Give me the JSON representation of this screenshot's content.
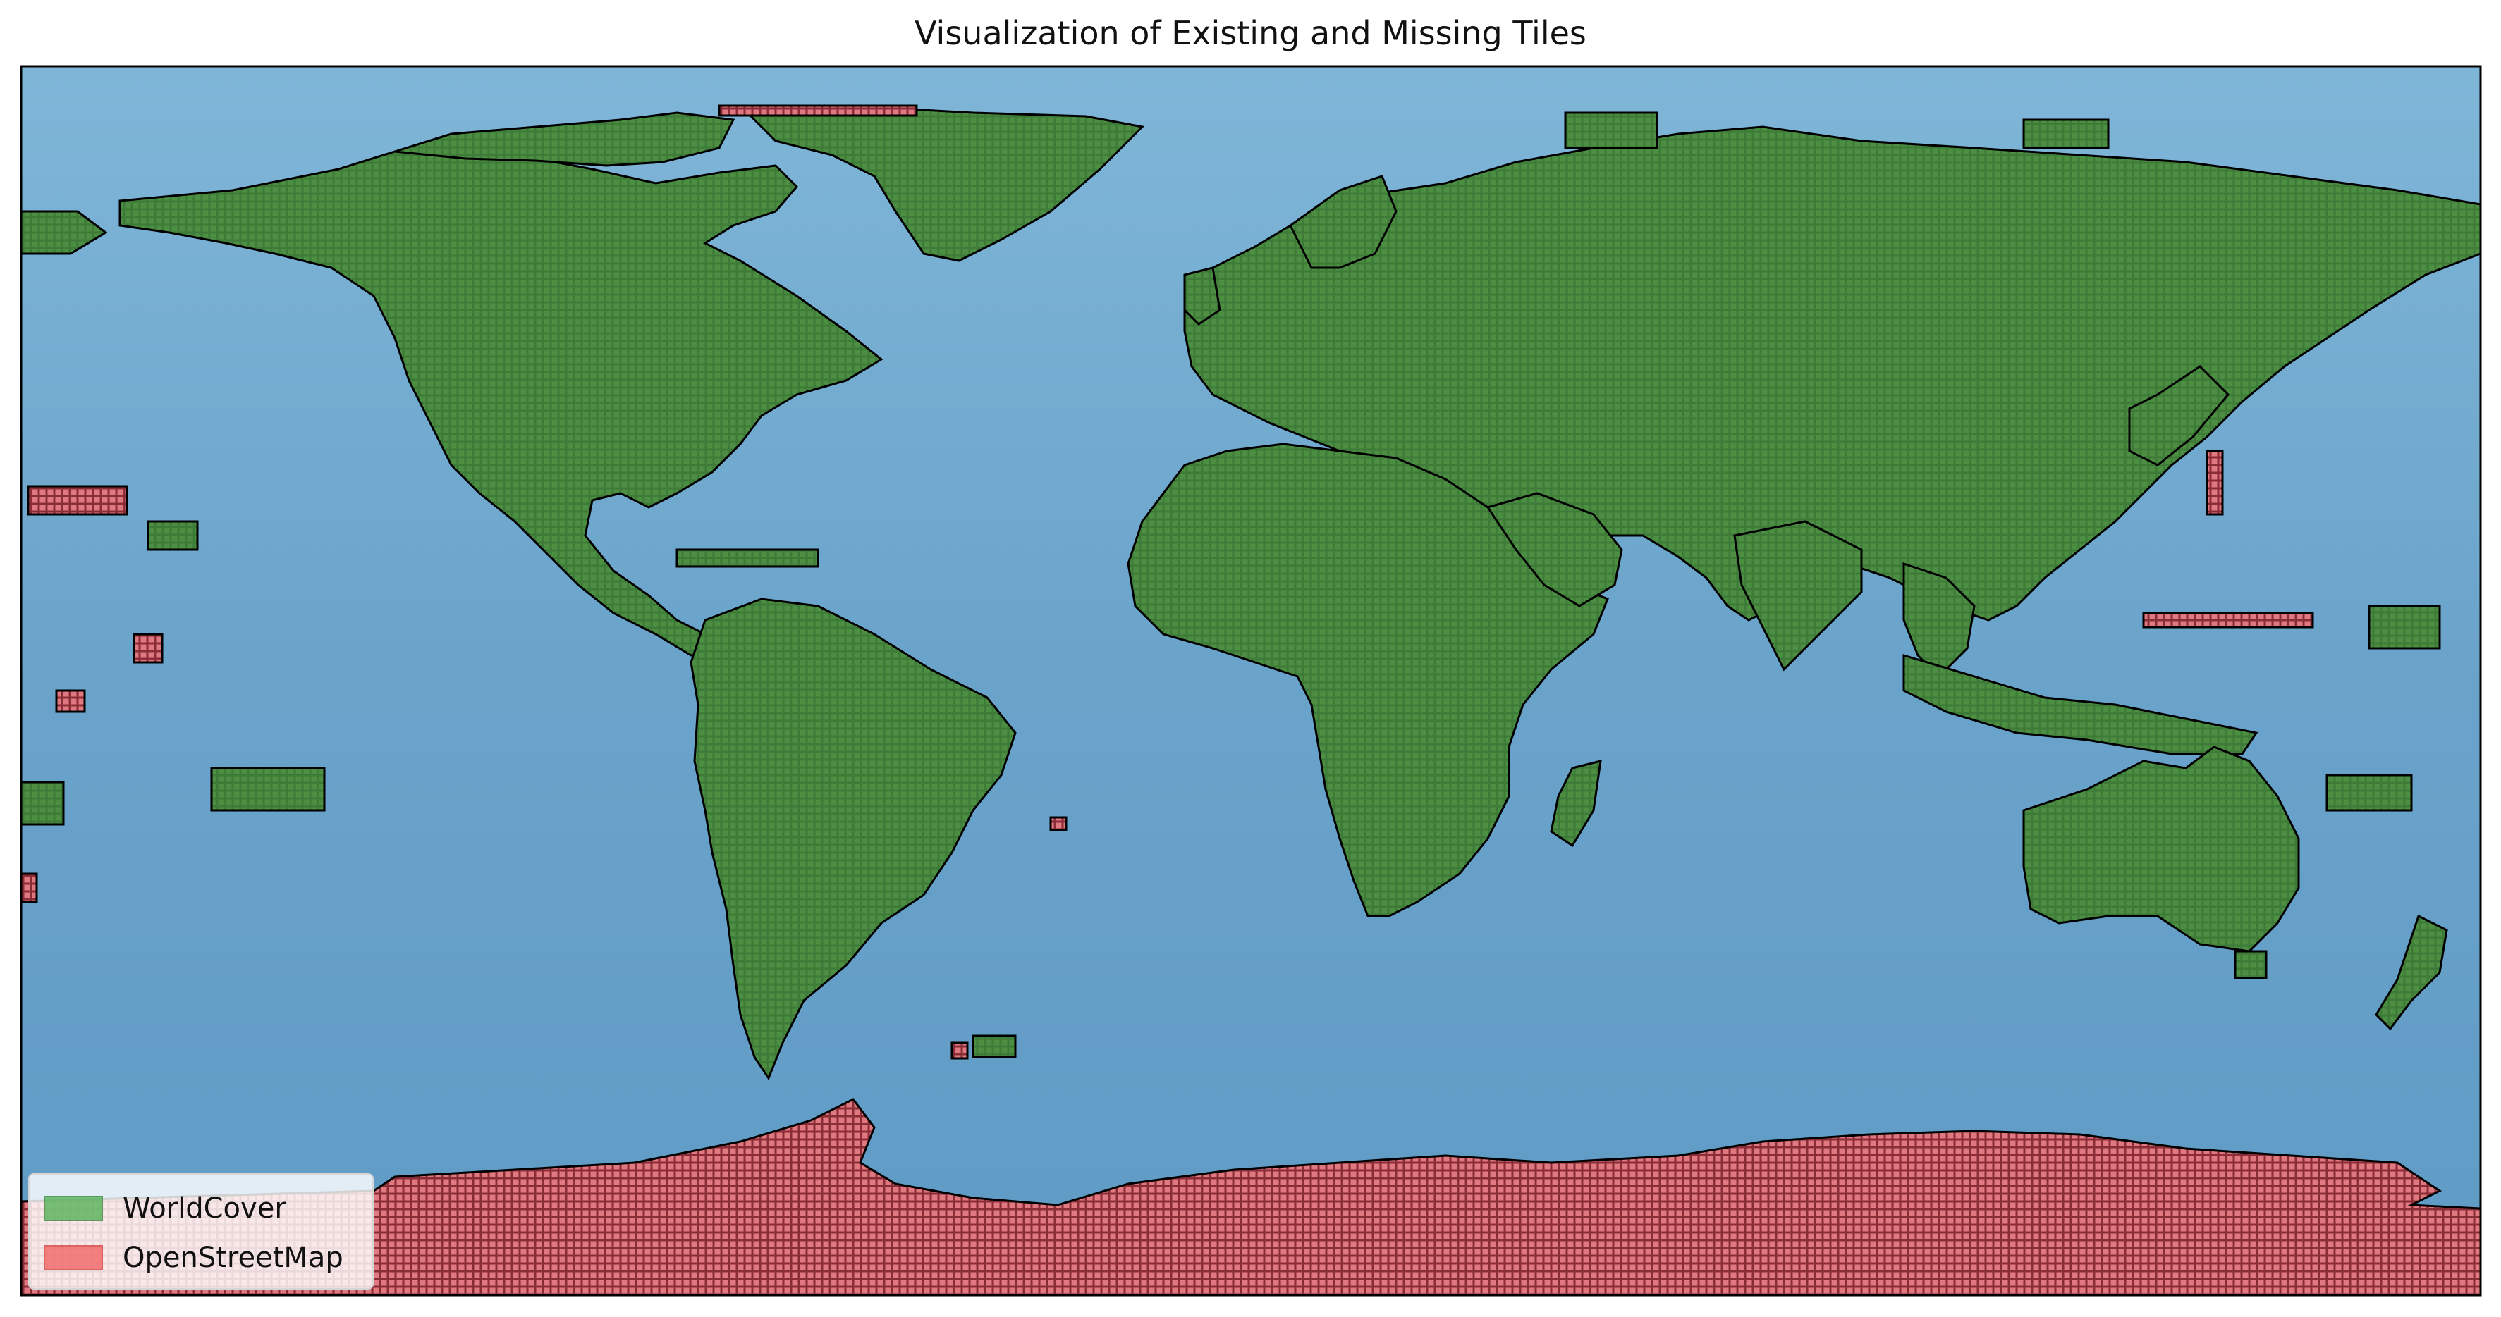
{
  "title": "Visualization of Existing and Missing Tiles",
  "colors": {
    "ocean": "#6ea9cf",
    "ocean_dark": "#4f8cb8",
    "worldcover_fill": "#3e7a38",
    "worldcover_cell": "#2e5f2a",
    "osm_fill": "#d96c74",
    "osm_cell": "#8a2d36",
    "coastline": "#000000"
  },
  "legend": {
    "position": "lower-left",
    "items": [
      {
        "label": "WorldCover",
        "color": "#4caf50",
        "edge": "#3a8a3c"
      },
      {
        "label": "OpenStreetMap",
        "color": "#f26d6d",
        "edge": "#d84b4b"
      }
    ]
  }
}
